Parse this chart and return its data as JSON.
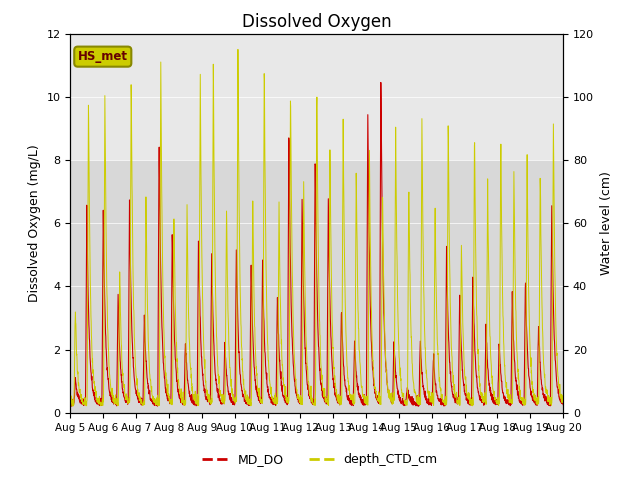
{
  "title": "Dissolved Oxygen",
  "ylabel_left": "Dissolved Oxygen (mg/L)",
  "ylabel_right": "Water level (cm)",
  "ylim_left": [
    0,
    12
  ],
  "ylim_right": [
    0,
    120
  ],
  "xtick_labels": [
    "Aug 5",
    "Aug 6",
    "Aug 7",
    "Aug 8",
    "Aug 9",
    "Aug 10",
    "Aug 11",
    "Aug 12",
    "Aug 13",
    "Aug 14",
    "Aug 15",
    "Aug 16",
    "Aug 17",
    "Aug 18",
    "Aug 19",
    "Aug 20"
  ],
  "legend_labels": [
    "MD_DO",
    "depth_CTD_cm"
  ],
  "line_color_do": "#cc0000",
  "line_color_depth": "#cccc00",
  "bg_color_lower": "#d8d8d8",
  "bg_color_upper": "#e8e8e8",
  "shade_boundary": 8,
  "fig_bg": "#ffffff",
  "annotation_text": "HS_met",
  "annotation_bg": "#cccc00",
  "annotation_border": "#888800",
  "annotation_text_color": "#660000",
  "title_fontsize": 12,
  "axis_label_fontsize": 9,
  "tick_fontsize": 7.5
}
